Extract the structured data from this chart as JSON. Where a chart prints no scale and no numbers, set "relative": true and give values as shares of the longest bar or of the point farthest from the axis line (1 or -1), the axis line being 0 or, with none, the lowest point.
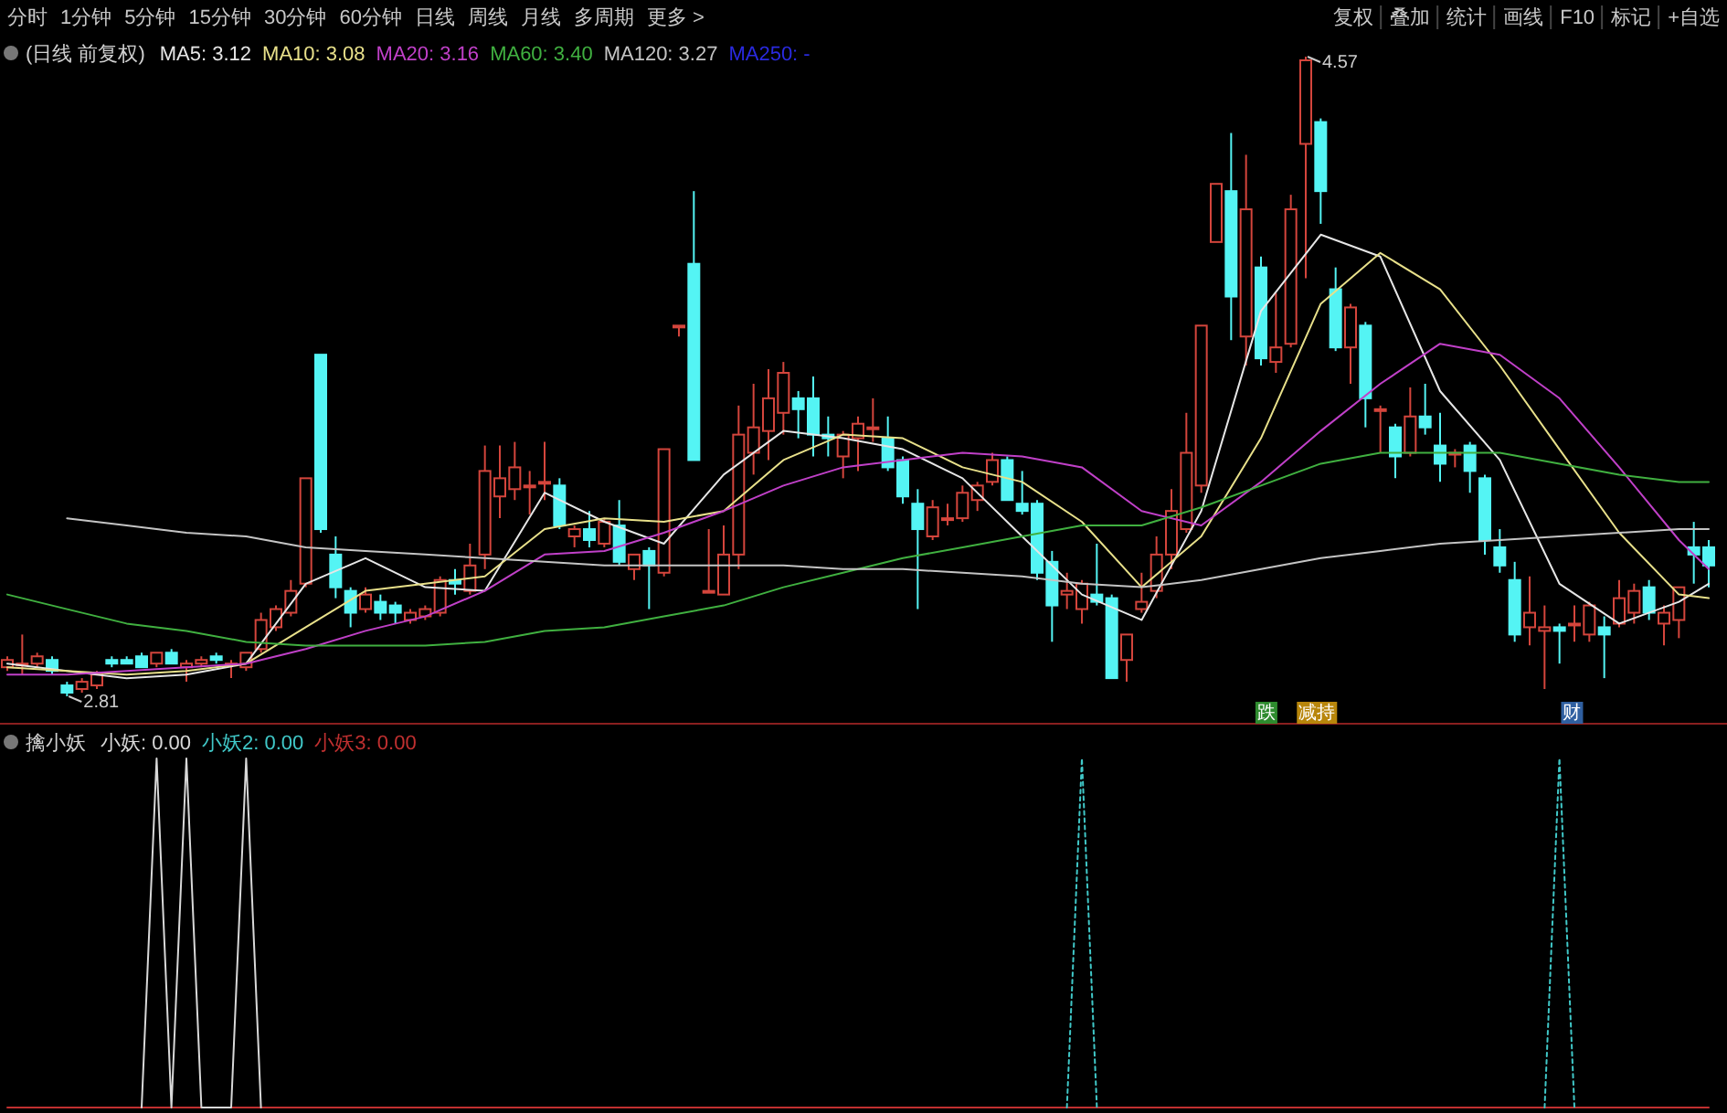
{
  "chart_data": [
    {
      "type": "other",
      "annotations": [
        "分时",
        "1分钟",
        "5分钟",
        "15分钟",
        "30分钟",
        "60分钟",
        "日线",
        "周线",
        "月线",
        "多周期",
        "更多 >"
      ]
    },
    {
      "type": "other",
      "annotations": [
        "复权",
        "叠加",
        "统计",
        "画线",
        "F10",
        "标记",
        "+自选"
      ]
    },
    {
      "type": "candlestick",
      "title": "(日线 前复权)",
      "categories": [
        null,
        null,
        null,
        null,
        null,
        null,
        null,
        null,
        null,
        null,
        null,
        null,
        null,
        null,
        null,
        null,
        null,
        null,
        null,
        null,
        null,
        null,
        null,
        null,
        null,
        null,
        null,
        null,
        null,
        null,
        null,
        null,
        null,
        null,
        null,
        null,
        null,
        null,
        null,
        null,
        null,
        null,
        null,
        null,
        null,
        null,
        null,
        null,
        null,
        null,
        null,
        null,
        null,
        null,
        null,
        null,
        null,
        null,
        null,
        null,
        null,
        null,
        null,
        null,
        null,
        null,
        null,
        null,
        null,
        null,
        null,
        null,
        null,
        null,
        null,
        null,
        null,
        null,
        null,
        null,
        null,
        null,
        null,
        null,
        null,
        null,
        null,
        null,
        null,
        null,
        null,
        null,
        null,
        null,
        null,
        null,
        null,
        null,
        null,
        null,
        null,
        null,
        null,
        null,
        null,
        null,
        null,
        null,
        null,
        null,
        null,
        null,
        null,
        null,
        null
      ],
      "ohlc": [
        [
          2.89,
          2.92,
          2.88,
          2.91
        ],
        [
          2.9,
          2.98,
          2.87,
          2.9
        ],
        [
          2.9,
          2.93,
          2.89,
          2.92
        ],
        [
          2.91,
          2.92,
          2.87,
          2.88
        ],
        [
          2.84,
          2.85,
          2.81,
          2.82
        ],
        [
          2.83,
          2.86,
          2.82,
          2.85
        ],
        [
          2.84,
          2.88,
          2.83,
          2.87
        ],
        [
          2.91,
          2.92,
          2.89,
          2.9
        ],
        [
          2.91,
          2.92,
          2.9,
          2.9
        ],
        [
          2.92,
          2.93,
          2.89,
          2.89
        ],
        [
          2.9,
          2.93,
          2.89,
          2.93
        ],
        [
          2.93,
          2.94,
          2.9,
          2.9
        ],
        [
          2.89,
          2.91,
          2.85,
          2.9
        ],
        [
          2.9,
          2.92,
          2.89,
          2.91
        ],
        [
          2.92,
          2.93,
          2.9,
          2.91
        ],
        [
          2.9,
          2.91,
          2.86,
          2.9
        ],
        [
          2.89,
          2.93,
          2.88,
          2.93
        ],
        [
          2.94,
          3.04,
          2.93,
          3.02
        ],
        [
          3.0,
          3.06,
          2.99,
          3.05
        ],
        [
          3.04,
          3.13,
          3.03,
          3.1
        ],
        [
          3.12,
          3.41,
          3.11,
          3.41
        ],
        [
          3.75,
          3.75,
          3.26,
          3.27
        ],
        [
          3.2,
          3.25,
          3.08,
          3.11
        ],
        [
          3.1,
          3.11,
          3.0,
          3.04
        ],
        [
          3.05,
          3.11,
          3.04,
          3.09
        ],
        [
          3.07,
          3.09,
          3.02,
          3.04
        ],
        [
          3.06,
          3.07,
          3.01,
          3.04
        ],
        [
          3.02,
          3.05,
          3.01,
          3.04
        ],
        [
          3.03,
          3.06,
          3.02,
          3.05
        ],
        [
          3.04,
          3.14,
          3.03,
          3.13
        ],
        [
          3.13,
          3.16,
          3.09,
          3.12
        ],
        [
          3.1,
          3.23,
          3.09,
          3.17
        ],
        [
          3.2,
          3.5,
          3.16,
          3.43
        ],
        [
          3.36,
          3.5,
          3.3,
          3.41
        ],
        [
          3.38,
          3.51,
          3.35,
          3.44
        ],
        [
          3.39,
          3.43,
          3.31,
          3.39
        ],
        [
          3.4,
          3.51,
          3.35,
          3.4
        ],
        [
          3.39,
          3.41,
          3.27,
          3.28
        ],
        [
          3.25,
          3.28,
          3.22,
          3.27
        ],
        [
          3.27,
          3.32,
          3.22,
          3.24
        ],
        [
          3.23,
          3.3,
          3.22,
          3.29
        ],
        [
          3.28,
          3.35,
          3.17,
          3.18
        ],
        [
          3.16,
          3.2,
          3.13,
          3.2
        ],
        [
          3.21,
          3.22,
          3.05,
          3.17
        ],
        [
          3.15,
          3.49,
          3.14,
          3.49
        ],
        [
          3.83,
          3.83,
          3.8,
          3.83
        ],
        [
          4.0,
          4.2,
          3.46,
          3.46
        ],
        [
          3.1,
          3.27,
          3.1,
          3.1
        ],
        [
          3.09,
          3.28,
          3.09,
          3.2
        ],
        [
          3.2,
          3.61,
          3.16,
          3.53
        ],
        [
          3.48,
          3.67,
          3.42,
          3.55
        ],
        [
          3.54,
          3.71,
          3.46,
          3.63
        ],
        [
          3.59,
          3.73,
          3.53,
          3.7
        ],
        [
          3.63,
          3.65,
          3.52,
          3.6
        ],
        [
          3.63,
          3.69,
          3.47,
          3.53
        ],
        [
          3.53,
          3.58,
          3.47,
          3.52
        ],
        [
          3.47,
          3.54,
          3.41,
          3.53
        ],
        [
          3.52,
          3.58,
          3.43,
          3.56
        ],
        [
          3.55,
          3.63,
          3.51,
          3.55
        ],
        [
          3.52,
          3.58,
          3.43,
          3.44
        ],
        [
          3.46,
          3.47,
          3.34,
          3.36
        ],
        [
          3.34,
          3.38,
          3.05,
          3.27
        ],
        [
          3.25,
          3.35,
          3.24,
          3.33
        ],
        [
          3.3,
          3.34,
          3.28,
          3.3
        ],
        [
          3.3,
          3.39,
          3.29,
          3.37
        ],
        [
          3.35,
          3.4,
          3.32,
          3.39
        ],
        [
          3.4,
          3.48,
          3.39,
          3.46
        ],
        [
          3.46,
          3.47,
          3.35,
          3.35
        ],
        [
          3.34,
          3.43,
          3.31,
          3.32
        ],
        [
          3.34,
          3.35,
          3.13,
          3.15
        ],
        [
          3.18,
          3.21,
          2.96,
          3.06
        ],
        [
          3.09,
          3.15,
          3.05,
          3.1
        ],
        [
          3.05,
          3.13,
          3.01,
          3.12
        ],
        [
          3.09,
          3.23,
          3.06,
          3.07
        ],
        [
          3.08,
          3.09,
          2.86,
          2.86
        ],
        [
          2.91,
          2.98,
          2.85,
          2.98
        ],
        [
          3.05,
          3.15,
          3.04,
          3.07
        ],
        [
          3.1,
          3.25,
          3.08,
          3.2
        ],
        [
          3.2,
          3.38,
          3.16,
          3.32
        ],
        [
          3.27,
          3.59,
          3.26,
          3.48
        ],
        [
          3.39,
          3.83,
          3.37,
          3.83
        ],
        [
          4.06,
          4.22,
          4.06,
          4.22
        ],
        [
          4.2,
          4.36,
          3.79,
          3.91
        ],
        [
          3.8,
          4.3,
          3.72,
          4.15
        ],
        [
          3.99,
          4.02,
          3.72,
          3.74
        ],
        [
          3.73,
          3.92,
          3.7,
          3.77
        ],
        [
          3.78,
          4.19,
          3.77,
          4.15
        ],
        [
          4.33,
          4.57,
          3.96,
          4.56
        ],
        [
          4.39,
          4.4,
          4.11,
          4.2
        ],
        [
          3.93,
          3.99,
          3.76,
          3.77
        ],
        [
          3.77,
          3.89,
          3.67,
          3.88
        ],
        [
          3.83,
          3.84,
          3.55,
          3.63
        ],
        [
          3.6,
          3.61,
          3.48,
          3.6
        ],
        [
          3.55,
          3.56,
          3.41,
          3.47
        ],
        [
          3.48,
          3.66,
          3.47,
          3.58
        ],
        [
          3.58,
          3.67,
          3.53,
          3.55
        ],
        [
          3.5,
          3.59,
          3.4,
          3.45
        ],
        [
          3.48,
          3.49,
          3.44,
          3.48
        ],
        [
          3.5,
          3.51,
          3.37,
          3.43
        ],
        [
          3.41,
          3.42,
          3.2,
          3.24
        ],
        [
          3.22,
          3.27,
          3.15,
          3.17
        ],
        [
          3.13,
          3.18,
          2.96,
          2.98
        ],
        [
          3.0,
          3.14,
          2.95,
          3.04
        ],
        [
          2.99,
          3.06,
          2.83,
          3.0
        ],
        [
          3.0,
          3.01,
          2.9,
          2.99
        ],
        [
          3.01,
          3.06,
          2.96,
          3.01
        ],
        [
          2.98,
          3.07,
          2.96,
          3.06
        ],
        [
          3.0,
          3.03,
          2.86,
          2.98
        ],
        [
          3.01,
          3.13,
          3.0,
          3.08
        ],
        [
          3.04,
          3.12,
          3.01,
          3.1
        ],
        [
          3.11,
          3.13,
          3.02,
          3.04
        ],
        [
          3.01,
          3.06,
          2.95,
          3.04
        ],
        [
          3.02,
          3.11,
          2.97,
          3.11
        ],
        [
          3.22,
          3.29,
          3.12,
          3.2
        ],
        [
          3.22,
          3.24,
          3.11,
          3.17
        ]
      ],
      "series": [
        {
          "name": "MA5: 3.12",
          "type": "line",
          "color": "#e6e6e6",
          "values": [
            2.9,
            null,
            null,
            null,
            2.88,
            null,
            null,
            null,
            2.86,
            null,
            null,
            null,
            2.87,
            null,
            null,
            null,
            2.9,
            null,
            null,
            null,
            3.12,
            null,
            null,
            null,
            3.19,
            null,
            null,
            null,
            3.11,
            null,
            null,
            null,
            3.1,
            null,
            null,
            null,
            3.37,
            null,
            null,
            null,
            3.29,
            null,
            null,
            null,
            3.23,
            null,
            null,
            null,
            3.42,
            null,
            null,
            null,
            3.54,
            null,
            null,
            null,
            3.52,
            null,
            null,
            null,
            3.49,
            null,
            null,
            null,
            3.41,
            null,
            null,
            null,
            3.25,
            null,
            null,
            null,
            3.09,
            null,
            null,
            null,
            3.02,
            null,
            null,
            null,
            3.32,
            null,
            null,
            null,
            3.87,
            null,
            null,
            null,
            4.08,
            null,
            null,
            null,
            4.02,
            null,
            null,
            null,
            3.65,
            null,
            null,
            null,
            3.46,
            null,
            null,
            null,
            3.12,
            null,
            null,
            null,
            3.01,
            null,
            null,
            null,
            3.07,
            null,
            3.12
          ]
        },
        {
          "name": "MA10: 3.08",
          "type": "line",
          "color": "#e8e08a",
          "values": [
            2.89,
            null,
            null,
            null,
            2.88,
            null,
            null,
            null,
            2.87,
            null,
            null,
            null,
            2.88,
            null,
            null,
            null,
            2.9,
            null,
            null,
            null,
            3.0,
            null,
            null,
            null,
            3.1,
            null,
            null,
            null,
            3.12,
            null,
            null,
            null,
            3.14,
            null,
            null,
            null,
            3.27,
            null,
            null,
            null,
            3.3,
            null,
            null,
            null,
            3.29,
            null,
            null,
            null,
            3.32,
            null,
            null,
            null,
            3.46,
            null,
            null,
            null,
            3.53,
            null,
            null,
            null,
            3.52,
            null,
            null,
            null,
            3.44,
            null,
            null,
            null,
            3.4,
            null,
            null,
            null,
            3.29,
            null,
            null,
            null,
            3.11,
            null,
            null,
            null,
            3.25,
            null,
            null,
            null,
            3.52,
            null,
            null,
            null,
            3.89,
            null,
            null,
            null,
            4.03,
            null,
            null,
            null,
            3.93,
            null,
            null,
            null,
            3.72,
            null,
            null,
            null,
            3.49,
            null,
            null,
            null,
            3.26,
            null,
            null,
            null,
            3.09,
            null,
            3.08
          ]
        },
        {
          "name": "MA20: 3.16",
          "type": "line",
          "color": "#c040c8",
          "values": [
            2.87,
            null,
            null,
            null,
            2.87,
            null,
            null,
            null,
            2.88,
            null,
            null,
            null,
            2.89,
            null,
            null,
            null,
            2.9,
            null,
            null,
            null,
            2.94,
            null,
            null,
            null,
            2.99,
            null,
            null,
            null,
            3.03,
            null,
            null,
            null,
            3.1,
            null,
            null,
            null,
            3.2,
            null,
            null,
            null,
            3.21,
            null,
            null,
            null,
            3.26,
            null,
            null,
            null,
            3.32,
            null,
            null,
            null,
            3.39,
            null,
            null,
            null,
            3.44,
            null,
            null,
            null,
            3.46,
            null,
            null,
            null,
            3.48,
            null,
            null,
            null,
            3.47,
            null,
            null,
            null,
            3.44,
            null,
            null,
            null,
            3.32,
            null,
            null,
            null,
            3.28,
            null,
            null,
            null,
            3.4,
            null,
            null,
            null,
            3.54,
            null,
            null,
            null,
            3.67,
            null,
            null,
            null,
            3.78,
            null,
            null,
            null,
            3.75,
            null,
            null,
            null,
            3.63,
            null,
            null,
            null,
            3.44,
            null,
            null,
            null,
            3.24,
            null,
            3.16
          ]
        },
        {
          "name": "MA60: 3.40",
          "type": "line",
          "color": "#40b040",
          "values": [
            3.09,
            null,
            null,
            null,
            3.05,
            null,
            null,
            null,
            3.01,
            null,
            null,
            null,
            2.99,
            null,
            null,
            null,
            2.96,
            null,
            null,
            null,
            2.95,
            null,
            null,
            null,
            2.95,
            null,
            null,
            null,
            2.95,
            null,
            null,
            null,
            2.96,
            null,
            null,
            null,
            2.99,
            null,
            null,
            null,
            3.0,
            null,
            null,
            null,
            3.03,
            null,
            null,
            null,
            3.06,
            null,
            null,
            null,
            3.11,
            null,
            null,
            null,
            3.15,
            null,
            null,
            null,
            3.19,
            null,
            null,
            null,
            3.22,
            null,
            null,
            null,
            3.25,
            null,
            null,
            null,
            3.28,
            null,
            null,
            null,
            3.28,
            null,
            null,
            null,
            3.33,
            null,
            null,
            null,
            3.39,
            null,
            null,
            null,
            3.45,
            null,
            null,
            null,
            3.48,
            null,
            null,
            null,
            3.48,
            null,
            null,
            null,
            3.48,
            null,
            null,
            null,
            3.45,
            null,
            null,
            null,
            3.42,
            null,
            null,
            null,
            3.4,
            null,
            3.4
          ]
        },
        {
          "name": "MA120: 3.27",
          "type": "line",
          "color": "#c4c4c4",
          "values": [
            null,
            null,
            null,
            null,
            3.3,
            null,
            null,
            null,
            3.28,
            null,
            null,
            null,
            3.26,
            null,
            null,
            null,
            3.25,
            null,
            null,
            null,
            3.22,
            null,
            null,
            null,
            3.21,
            null,
            null,
            null,
            3.2,
            null,
            null,
            null,
            3.19,
            null,
            null,
            null,
            3.18,
            null,
            null,
            null,
            3.17,
            null,
            null,
            null,
            3.17,
            null,
            null,
            null,
            3.17,
            null,
            null,
            null,
            3.17,
            null,
            null,
            null,
            3.16,
            null,
            null,
            null,
            3.16,
            null,
            null,
            null,
            3.15,
            null,
            null,
            null,
            3.14,
            null,
            null,
            null,
            3.12,
            null,
            null,
            null,
            3.11,
            null,
            null,
            null,
            3.13,
            null,
            null,
            null,
            3.16,
            null,
            null,
            null,
            3.19,
            null,
            null,
            null,
            3.21,
            null,
            null,
            null,
            3.23,
            null,
            null,
            null,
            3.24,
            null,
            null,
            null,
            3.25,
            null,
            null,
            null,
            3.26,
            null,
            null,
            null,
            3.27,
            null,
            3.27
          ]
        },
        {
          "name": "MA250: -",
          "type": "line",
          "color": "#2a2ae0",
          "values": [
            null,
            null,
            null,
            null,
            null,
            null,
            null,
            null,
            null,
            null,
            null,
            null,
            null,
            null,
            null,
            null,
            null,
            null,
            null,
            null,
            null,
            null,
            null,
            null,
            null,
            null,
            null,
            null,
            null,
            null,
            null,
            null,
            null,
            null,
            null,
            null,
            null,
            null,
            null,
            null,
            null,
            null,
            null,
            null,
            null,
            null,
            null,
            null,
            null,
            null,
            null,
            null,
            null,
            null,
            null,
            null,
            null,
            null,
            null,
            null,
            null,
            null,
            null,
            null,
            null,
            null,
            null,
            null,
            null,
            null,
            null,
            null,
            null,
            null,
            null,
            null,
            null,
            null,
            null,
            null,
            null,
            null,
            null,
            null,
            null,
            null,
            null,
            null,
            null,
            null,
            null,
            null,
            null,
            null,
            null,
            null,
            null,
            null,
            null,
            null,
            null,
            null,
            null,
            null,
            null,
            null,
            null,
            null,
            null,
            null,
            null,
            null,
            null,
            null,
            null
          ]
        }
      ],
      "annotations": [
        "4.57",
        "2.81",
        "跌",
        "减持",
        "财"
      ]
    },
    {
      "type": "line",
      "title": "擒小妖",
      "relative": true,
      "categories": [
        null,
        null,
        null,
        null,
        null,
        null,
        null,
        null,
        null,
        null,
        null,
        null,
        null,
        null,
        null,
        null,
        null,
        null,
        null,
        null,
        null,
        null,
        null,
        null,
        null,
        null,
        null,
        null,
        null,
        null,
        null,
        null,
        null,
        null,
        null,
        null,
        null,
        null,
        null,
        null,
        null,
        null,
        null,
        null,
        null,
        null,
        null,
        null,
        null,
        null,
        null,
        null,
        null,
        null,
        null,
        null,
        null,
        null,
        null,
        null,
        null,
        null,
        null,
        null,
        null,
        null,
        null,
        null,
        null,
        null,
        null,
        null,
        null,
        null,
        null,
        null,
        null,
        null,
        null,
        null,
        null,
        null,
        null,
        null,
        null,
        null,
        null,
        null,
        null,
        null,
        null,
        null,
        null,
        null,
        null,
        null,
        null,
        null,
        null,
        null,
        null,
        null,
        null,
        null,
        null,
        null,
        null,
        null,
        null,
        null,
        null,
        null,
        null,
        null,
        null
      ],
      "series": [
        {
          "name": "小妖: 0.00",
          "color": "#d8d8d8",
          "line_style": "solid",
          "values": [
            null,
            null,
            null,
            null,
            null,
            null,
            null,
            null,
            null,
            0,
            1,
            0,
            1,
            0,
            null,
            0,
            1,
            0,
            null,
            null,
            null,
            null,
            null,
            null,
            null,
            null,
            null,
            null,
            null,
            null,
            null,
            null,
            null,
            null,
            null,
            null,
            null,
            null,
            null,
            null,
            null,
            null,
            null,
            null,
            null,
            null,
            null,
            null,
            null,
            null,
            null,
            null,
            null,
            null,
            null,
            null,
            null,
            null,
            null,
            null,
            null,
            null,
            null,
            null,
            null,
            null,
            null,
            null,
            null,
            null,
            null,
            null,
            null,
            null,
            null,
            null,
            null,
            null,
            null,
            null,
            null,
            null,
            null,
            null,
            null,
            null,
            null,
            null,
            null,
            null,
            null,
            null,
            null,
            null,
            null,
            null,
            null,
            null,
            null,
            null,
            null,
            null,
            null,
            null,
            null,
            null,
            null,
            null,
            null,
            null,
            null,
            null,
            null,
            null,
            null
          ]
        },
        {
          "name": "小妖2: 0.00",
          "color": "#40c8c8",
          "line_style": "dotted",
          "values": [
            null,
            null,
            null,
            null,
            null,
            null,
            null,
            null,
            null,
            null,
            null,
            null,
            null,
            null,
            null,
            null,
            null,
            null,
            null,
            null,
            null,
            null,
            null,
            null,
            null,
            null,
            null,
            null,
            null,
            null,
            null,
            null,
            null,
            null,
            null,
            null,
            null,
            null,
            null,
            null,
            null,
            null,
            null,
            null,
            null,
            null,
            null,
            null,
            null,
            null,
            null,
            null,
            null,
            null,
            null,
            null,
            null,
            null,
            null,
            null,
            null,
            null,
            null,
            null,
            null,
            null,
            null,
            null,
            null,
            null,
            null,
            0,
            1,
            0,
            null,
            null,
            null,
            null,
            null,
            null,
            null,
            null,
            null,
            null,
            null,
            null,
            null,
            null,
            null,
            null,
            null,
            null,
            null,
            null,
            null,
            null,
            null,
            null,
            null,
            null,
            null,
            null,
            null,
            0,
            1,
            0,
            null,
            null,
            null,
            null,
            null,
            null,
            null,
            null,
            null
          ]
        },
        {
          "name": "小妖3: 0.00",
          "color": "#c03030",
          "line_style": "solid",
          "values": [
            0,
            0,
            0,
            0,
            0,
            0,
            0,
            0,
            0,
            null,
            0,
            null,
            0,
            null,
            null,
            null,
            0,
            null,
            0,
            0,
            0,
            0,
            0,
            0,
            0,
            0,
            0,
            0,
            0,
            0,
            0,
            0,
            0,
            0,
            0,
            0,
            0,
            0,
            0,
            0,
            0,
            0,
            0,
            0,
            0,
            0,
            0,
            0,
            0,
            0,
            0,
            0,
            0,
            0,
            0,
            0,
            0,
            0,
            0,
            0,
            0,
            0,
            0,
            0,
            0,
            0,
            0,
            0,
            0,
            0,
            0,
            null,
            0,
            null,
            0,
            0,
            0,
            0,
            0,
            0,
            0,
            0,
            0,
            0,
            0,
            0,
            0,
            0,
            0,
            0,
            0,
            0,
            0,
            0,
            0,
            0,
            0,
            0,
            0,
            0,
            0,
            0,
            0,
            null,
            0,
            null,
            0,
            0,
            0,
            0,
            0,
            0,
            0,
            0,
            0
          ]
        }
      ]
    }
  ]
}
